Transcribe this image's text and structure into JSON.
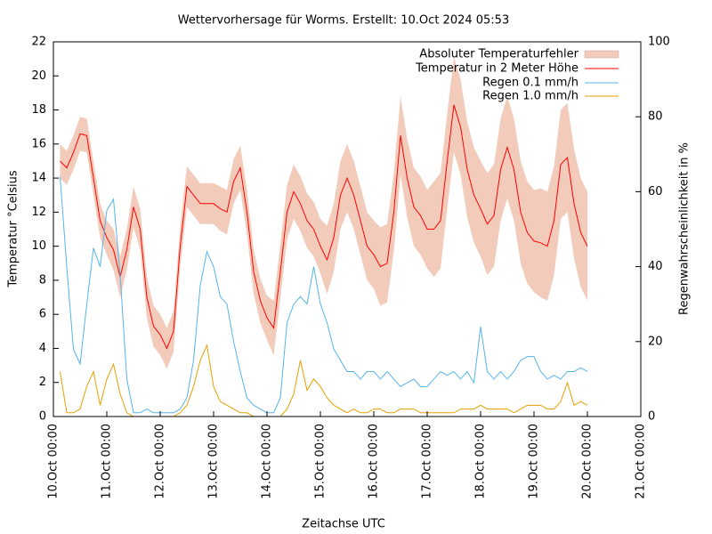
{
  "chart_data": {
    "type": "line",
    "title": "Wettervorhersage für Worms. Erstellt: 10.Oct 2024 05:53",
    "x_label": "Zeitachse UTC",
    "y_label": "Temperatur °Celsius",
    "y2_label": "Regenwahrscheinlichkeit in %",
    "xlim": [
      "10.Oct 00:00",
      "21.Oct 00:00"
    ],
    "xticks": [
      "10.Oct 00:00",
      "11.Oct 00:00",
      "12.Oct 00:00",
      "13.Oct 00:00",
      "14.Oct 00:00",
      "15.Oct 00:00",
      "16.Oct 00:00",
      "17.Oct 00:00",
      "18.Oct 00:00",
      "19.Oct 00:00",
      "20.Oct 00:00",
      "21.Oct 00:00"
    ],
    "ylim": [
      0,
      22
    ],
    "yticks": [
      0,
      2,
      4,
      6,
      8,
      10,
      12,
      14,
      16,
      18,
      20,
      22
    ],
    "y2lim": [
      0,
      100
    ],
    "y2ticks": [
      0,
      20,
      40,
      60,
      80,
      100
    ],
    "x": [
      "10.Oct 03:00",
      "10.Oct 06:00",
      "10.Oct 09:00",
      "10.Oct 12:00",
      "10.Oct 15:00",
      "10.Oct 18:00",
      "10.Oct 21:00",
      "11.Oct 00:00",
      "11.Oct 03:00",
      "11.Oct 06:00",
      "11.Oct 09:00",
      "11.Oct 12:00",
      "11.Oct 15:00",
      "11.Oct 18:00",
      "11.Oct 21:00",
      "12.Oct 00:00",
      "12.Oct 03:00",
      "12.Oct 06:00",
      "12.Oct 09:00",
      "12.Oct 12:00",
      "12.Oct 15:00",
      "12.Oct 18:00",
      "12.Oct 21:00",
      "13.Oct 00:00",
      "13.Oct 03:00",
      "13.Oct 06:00",
      "13.Oct 09:00",
      "13.Oct 12:00",
      "13.Oct 15:00",
      "13.Oct 18:00",
      "13.Oct 21:00",
      "14.Oct 00:00",
      "14.Oct 03:00",
      "14.Oct 06:00",
      "14.Oct 09:00",
      "14.Oct 12:00",
      "14.Oct 15:00",
      "14.Oct 18:00",
      "14.Oct 21:00",
      "15.Oct 00:00",
      "15.Oct 03:00",
      "15.Oct 06:00",
      "15.Oct 09:00",
      "15.Oct 12:00",
      "15.Oct 15:00",
      "15.Oct 18:00",
      "15.Oct 21:00",
      "16.Oct 00:00",
      "16.Oct 03:00",
      "16.Oct 06:00",
      "16.Oct 09:00",
      "16.Oct 12:00",
      "16.Oct 15:00",
      "16.Oct 18:00",
      "16.Oct 21:00",
      "17.Oct 00:00",
      "17.Oct 03:00",
      "17.Oct 06:00",
      "17.Oct 09:00",
      "17.Oct 12:00",
      "17.Oct 15:00",
      "17.Oct 18:00",
      "17.Oct 21:00",
      "18.Oct 00:00",
      "18.Oct 03:00",
      "18.Oct 06:00",
      "18.Oct 09:00",
      "18.Oct 12:00",
      "18.Oct 15:00",
      "18.Oct 18:00",
      "18.Oct 21:00",
      "19.Oct 00:00",
      "19.Oct 03:00",
      "19.Oct 06:00",
      "19.Oct 09:00",
      "19.Oct 12:00",
      "19.Oct 15:00",
      "19.Oct 18:00",
      "19.Oct 21:00",
      "20.Oct 00:00"
    ],
    "error_band": {
      "name": "Absoluter Temperaturfehler",
      "color": "#f2cbbb",
      "values": [
        1,
        1,
        1,
        1,
        1,
        1,
        1,
        1,
        1.2,
        1.2,
        1.2,
        1.2,
        1.2,
        1.2,
        1.2,
        1.2,
        1.2,
        1.2,
        1.2,
        1.2,
        1.2,
        1.2,
        1.2,
        1.2,
        1.3,
        1.3,
        1.3,
        1.3,
        1.3,
        1.3,
        1.3,
        1.3,
        1.6,
        1.6,
        1.6,
        1.6,
        1.6,
        1.6,
        1.6,
        1.6,
        2,
        2,
        2,
        2,
        2,
        2,
        2,
        2,
        2.3,
        2.3,
        2.3,
        2.3,
        2.3,
        2.3,
        2.3,
        2.3,
        2.8,
        2.8,
        2.8,
        2.8,
        2.8,
        2.8,
        2.8,
        2.8,
        3,
        3,
        3,
        3,
        3,
        3,
        3,
        3,
        3.2,
        3.2,
        3.2,
        3.2,
        3.2,
        3.2,
        3.2,
        3.2
      ]
    },
    "series": [
      {
        "name": "Temperatur in 2 Meter Höhe",
        "color": "#ff0000",
        "values": [
          15,
          14.6,
          15.5,
          16.6,
          16.5,
          14,
          11.5,
          10.5,
          9.8,
          8.2,
          9.8,
          12.3,
          11,
          7,
          5.3,
          4.8,
          4,
          5,
          10,
          13.5,
          13,
          12.5,
          12.5,
          12.5,
          12.2,
          12,
          13.8,
          14.6,
          12,
          8.5,
          6.8,
          5.8,
          5.2,
          8.5,
          12,
          13.2,
          12.5,
          11.5,
          11,
          10,
          9.2,
          10.5,
          13,
          14,
          13,
          11.5,
          10,
          9.5,
          8.8,
          9,
          12,
          16.5,
          14,
          12.3,
          11.8,
          11,
          11,
          11.5,
          15,
          18.3,
          17,
          14.5,
          13,
          12.2,
          11.3,
          11.8,
          14.5,
          15.8,
          14.5,
          12,
          10.8,
          10.3,
          10.2,
          10,
          11.5,
          14.8,
          15.2,
          12.5,
          10.8,
          10
        ]
      },
      {
        "name": "Regen 0.1 mm/h",
        "color": "#56b4e9",
        "axis": "y2",
        "values": [
          64,
          40,
          18,
          14,
          30,
          45,
          40,
          55,
          58,
          38,
          10,
          1,
          1,
          2,
          1,
          1,
          1,
          1,
          2,
          5,
          15,
          35,
          44,
          40,
          32,
          30,
          20,
          12,
          5,
          3,
          2,
          1,
          1,
          5,
          25,
          30,
          32,
          30,
          40,
          30,
          25,
          18,
          15,
          12,
          12,
          10,
          12,
          12,
          10,
          12,
          10,
          8,
          9,
          10,
          8,
          8,
          10,
          12,
          11,
          12,
          10,
          12,
          9,
          24,
          12,
          10,
          12,
          10,
          12,
          15,
          16,
          16,
          12,
          10,
          11,
          10,
          12,
          12,
          13,
          12
        ]
      },
      {
        "name": "Regen 1.0 mm/h",
        "color": "#e69f00",
        "axis": "y2",
        "values": [
          12,
          1,
          1,
          2,
          8,
          12,
          3,
          10,
          14,
          6,
          1,
          0,
          0,
          0,
          0,
          0,
          0,
          0,
          1,
          3,
          8,
          15,
          19,
          8,
          4,
          3,
          2,
          1,
          1,
          0,
          0,
          0,
          0,
          0,
          2,
          6,
          15,
          7,
          10,
          8,
          5,
          3,
          2,
          1,
          2,
          1,
          1,
          2,
          2,
          1,
          1,
          2,
          2,
          2,
          1,
          1,
          1,
          1,
          1,
          1,
          2,
          2,
          2,
          3,
          2,
          2,
          2,
          2,
          1,
          2,
          3,
          3,
          3,
          2,
          2,
          4,
          9,
          3,
          4,
          3
        ]
      }
    ]
  }
}
